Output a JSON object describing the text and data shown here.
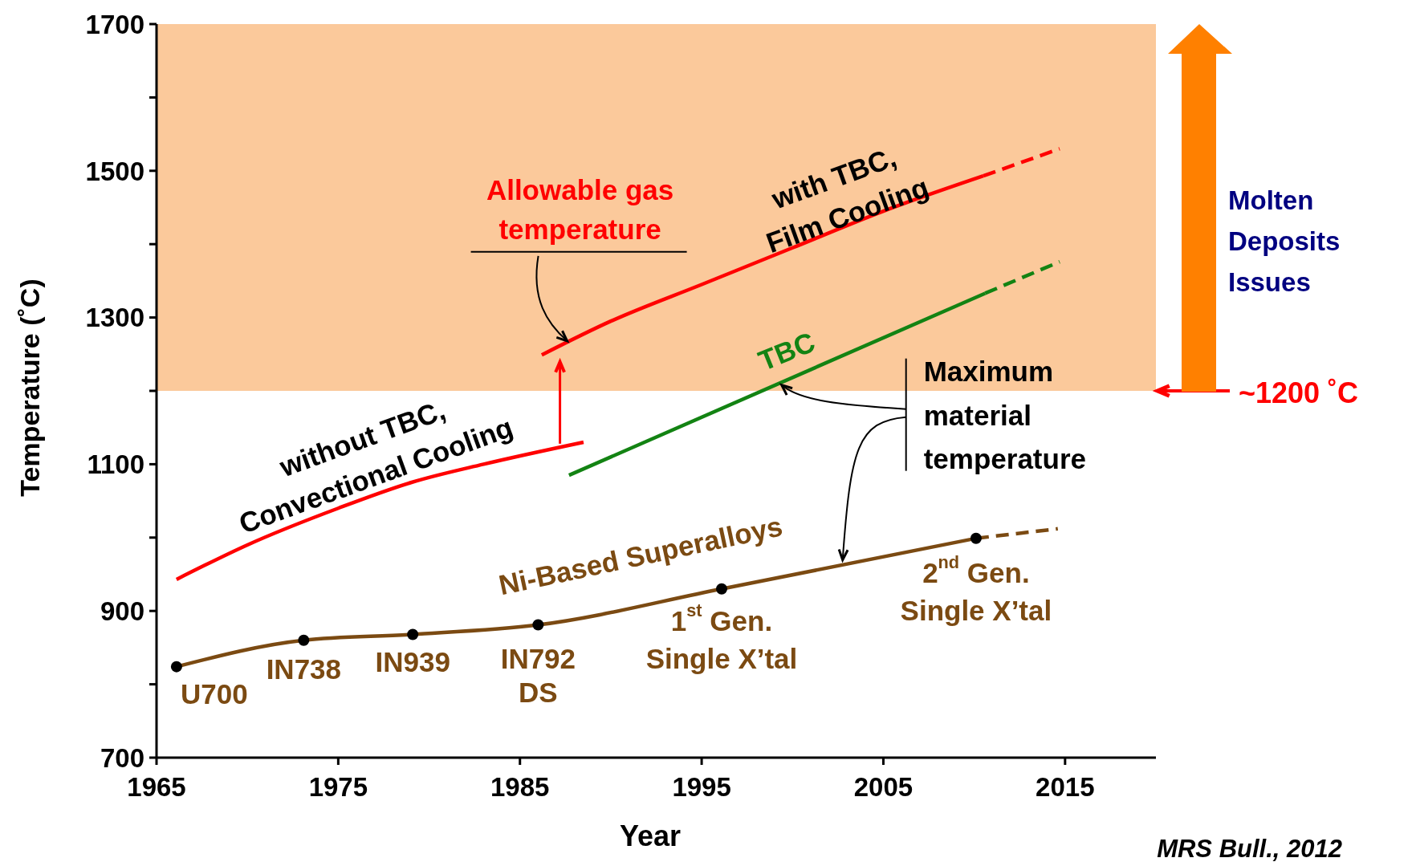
{
  "chart_data": {
    "type": "line",
    "xlabel": "Year",
    "ylabel": "Temperature (˚C)",
    "xlim": [
      1965,
      2020
    ],
    "xticks": [
      1965,
      1975,
      1985,
      1995,
      2005,
      2015
    ],
    "ylim": [
      700,
      1700
    ],
    "yticks": [
      700,
      {
        "value": 800,
        "label": null
      },
      900,
      {
        "value": 1000,
        "label": null
      },
      1100,
      {
        "value": 1200,
        "label": null
      },
      1300,
      {
        "value": 1400,
        "label": null
      },
      1500,
      {
        "value": 1600,
        "label": null
      },
      1700
    ],
    "series": [
      {
        "color": "#ff0000",
        "line_style": "solid",
        "x": [
          1966.1,
          1970,
          1975,
          1979,
          1983,
          1988.5
        ],
        "values": [
          943,
          990,
          1040,
          1075,
          1100,
          1130
        ]
      },
      {
        "color": "#ff0000",
        "line_style": "solid",
        "x": [
          1986.2,
          1990,
          1995,
          2000,
          2005,
          2010.5
        ],
        "values": [
          1249,
          1295,
          1345,
          1395,
          1445,
          1493
        ]
      },
      {
        "color": "#ff0000",
        "line_style": "dashed",
        "x": [
          2010.5,
          2014.7
        ],
        "values": [
          1493,
          1530
        ]
      },
      {
        "color": "#138313",
        "line_style": "solid",
        "x": [
          1987.7,
          2010.6
        ],
        "values": [
          1085,
          1333
        ]
      },
      {
        "color": "#138313",
        "line_style": "dashed",
        "x": [
          2010.6,
          2014.7
        ],
        "values": [
          1333,
          1376
        ]
      },
      {
        "color": "#7b4a12",
        "line_style": "solid",
        "marker": "circle",
        "x": [
          1966.1,
          1973.1,
          1979.1,
          1986,
          1996.1,
          2010.1
        ],
        "values": [
          824,
          860,
          868,
          881,
          930,
          999
        ]
      },
      {
        "color": "#7b4a12",
        "line_style": "dashed",
        "x": [
          2010.1,
          2014.6
        ],
        "values": [
          999,
          1012
        ]
      }
    ],
    "bands": [
      {
        "axis": "y",
        "from": 1200,
        "to": 1700,
        "label": "~1200 ˚C",
        "color": "#fbc99b"
      }
    ],
    "annotations": [
      {
        "text": "Allowable gas\ntemperature",
        "x": 1987.6,
        "y": 1268
      },
      {
        "text": "with TBC,\nFilm Cooling",
        "x": 1998,
        "y": 1375
      },
      {
        "text": "without TBC,\nConvectional Cooling",
        "x": 1977,
        "y": 1065
      },
      {
        "text": "TBC",
        "x": 1999,
        "y": 1211
      },
      {
        "text": "Maximum\nmaterial\ntemperature",
        "x": 1999.4,
        "y": 1208
      },
      {
        "text": "Ni-Based Superalloys",
        "x": 1990,
        "y": 901
      },
      {
        "text": "U700",
        "x": 1966.1,
        "y": 824
      },
      {
        "text": "IN738",
        "x": 1973.1,
        "y": 860
      },
      {
        "text": "IN939",
        "x": 1979.1,
        "y": 868
      },
      {
        "text": "IN792\nDS",
        "x": 1986,
        "y": 881
      },
      {
        "text": "1$^{st}$ Gen.\nSingle X’tal",
        "x": 1996.1,
        "y": 930
      },
      {
        "text": "2$^{nd}$ Gen.\nSingle X’tal",
        "x": 2010.1,
        "y": 999
      },
      "Molten\nDeposits\nIssues",
      "MRS Bull., 2012"
    ]
  }
}
